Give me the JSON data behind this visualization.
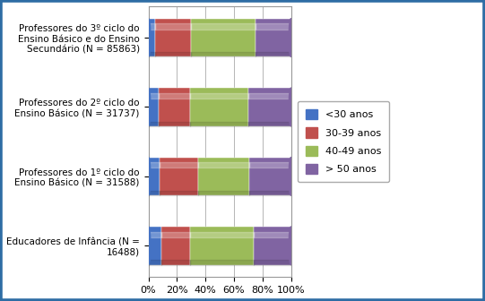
{
  "categories": [
    "Professores do 3º ciclo do\nEnsino Básico e do Ensino\nSecundário (N = 85863)",
    "Professores do 2º ciclo do\nEnsino Básico (N = 31737)",
    "Professores do 1º ciclo do\nEnsino Básico (N = 31588)",
    "Educadores de Infância (N =\n16488)"
  ],
  "series": {
    "<30 anos": [
      5,
      7,
      8,
      9
    ],
    "30-39 anos": [
      25,
      22,
      27,
      20
    ],
    "40-49 anos": [
      45,
      41,
      36,
      45
    ],
    "> 50 anos": [
      25,
      30,
      29,
      26
    ]
  },
  "colors": {
    "<30 anos": "#4472C4",
    "30-39 anos": "#C0504D",
    "40-49 anos": "#9BBB59",
    "> 50 anos": "#8064A2"
  },
  "legend_labels": [
    "<30 anos",
    "30-39 anos",
    "40-49 anos",
    "> 50 anos"
  ],
  "background_color": "#FFFFFF",
  "border_color": "#2E6DA4",
  "bar_height": 0.55,
  "xlim": [
    0,
    100
  ],
  "xtick_values": [
    0,
    20,
    40,
    60,
    80,
    100
  ],
  "xtick_labels": [
    "0%",
    "20%",
    "40%",
    "60%",
    "80%",
    "100%"
  ],
  "label_fontsize": 7.5,
  "legend_fontsize": 8,
  "tick_fontsize": 8
}
